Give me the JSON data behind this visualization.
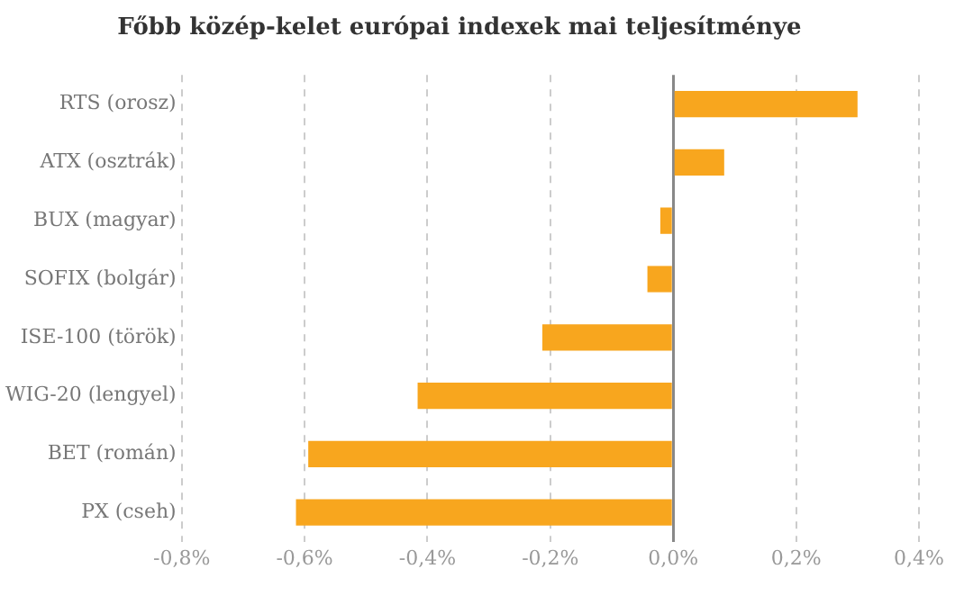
{
  "chart_data": {
    "type": "bar",
    "title": "Főbb közép-kelet európai indexek mai teljesítménye",
    "orientation": "horizontal",
    "categories": [
      "RTS (orosz)",
      "ATX (osztrák)",
      "BUX (magyar)",
      "SOFIX (bolgár)",
      "ISE-100 (török)",
      "WIG-20 (lengyel)",
      "BET (román)",
      "PX (cseh)"
    ],
    "values": [
      0.3,
      0.083,
      -0.021,
      -0.042,
      -0.213,
      -0.416,
      -0.594,
      -0.614
    ],
    "color": "#f8a61e",
    "xlim": [
      -0.8,
      0.4
    ],
    "xticks": [
      {
        "value": -0.8,
        "label": "-0,8%"
      },
      {
        "value": -0.6,
        "label": "-0,6%"
      },
      {
        "value": -0.4,
        "label": "-0,4%"
      },
      {
        "value": -0.2,
        "label": "-0,2%"
      },
      {
        "value": 0,
        "label": "0,0%"
      },
      {
        "value": 0.2,
        "label": "0,2%"
      },
      {
        "value": 0.4,
        "label": "0,4%"
      }
    ],
    "grid": "x"
  }
}
